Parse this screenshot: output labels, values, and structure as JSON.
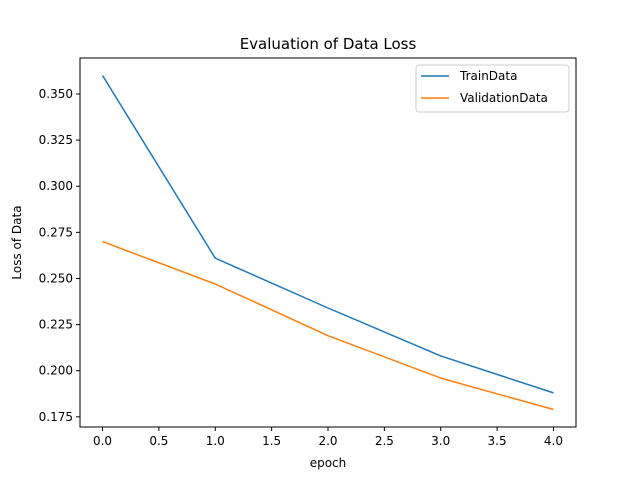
{
  "chart_data": {
    "type": "line",
    "title": "Evaluation of Data Loss",
    "xlabel": "epoch",
    "ylabel": "Loss of Data",
    "x": [
      0,
      1,
      2,
      3,
      4
    ],
    "series": [
      {
        "name": "TrainData",
        "color": "#1f77b4",
        "values": [
          0.36,
          0.261,
          0.234,
          0.208,
          0.188
        ]
      },
      {
        "name": "ValidationData",
        "color": "#ff7f0e",
        "values": [
          0.27,
          0.247,
          0.219,
          0.196,
          0.179
        ]
      }
    ],
    "xlim": [
      -0.2,
      4.2
    ],
    "ylim": [
      0.1695,
      0.3695
    ],
    "xticks": [
      0.0,
      0.5,
      1.0,
      1.5,
      2.0,
      2.5,
      3.0,
      3.5,
      4.0
    ],
    "xtick_labels": [
      "0.0",
      "0.5",
      "1.0",
      "1.5",
      "2.0",
      "2.5",
      "3.0",
      "3.5",
      "4.0"
    ],
    "yticks": [
      0.175,
      0.2,
      0.225,
      0.25,
      0.275,
      0.3,
      0.325,
      0.35
    ],
    "ytick_labels": [
      "0.175",
      "0.200",
      "0.225",
      "0.250",
      "0.275",
      "0.300",
      "0.325",
      "0.350"
    ],
    "grid": false,
    "legend_position": "top-right"
  }
}
